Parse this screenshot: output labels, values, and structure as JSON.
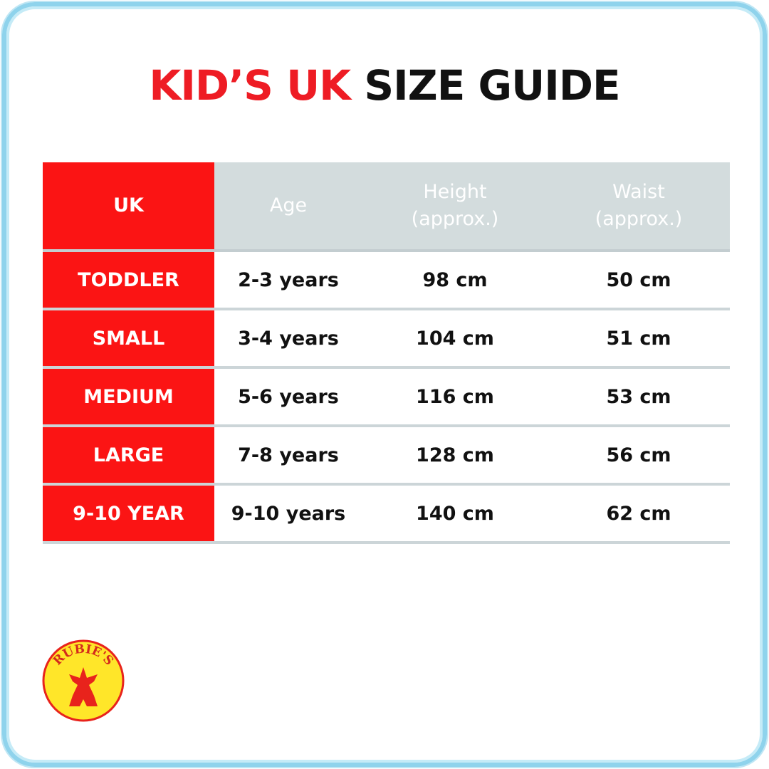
{
  "title": {
    "red": "KID’S UK",
    "black": " SIZE GUIDE"
  },
  "table": {
    "headers": [
      "UK",
      "Age",
      "Height\n(approx.)",
      "Waist\n(approx.)"
    ],
    "rows": [
      [
        "TODDLER",
        "2-3 years",
        "98 cm",
        "50 cm"
      ],
      [
        "SMALL",
        "3-4 years",
        "104 cm",
        "51 cm"
      ],
      [
        "MEDIUM",
        "5-6 years",
        "116 cm",
        "53 cm"
      ],
      [
        "LARGE",
        "7-8 years",
        "128 cm",
        "56 cm"
      ],
      [
        "9-10 YEAR",
        "9-10 years",
        "140 cm",
        "62 cm"
      ]
    ]
  },
  "logo": {
    "text": "RUBIE'S"
  },
  "colors": {
    "accent": "#fb1414",
    "header_bg": "#d3dcdd",
    "frame": "#8fd3ec",
    "logo_yellow": "#ffe629"
  }
}
